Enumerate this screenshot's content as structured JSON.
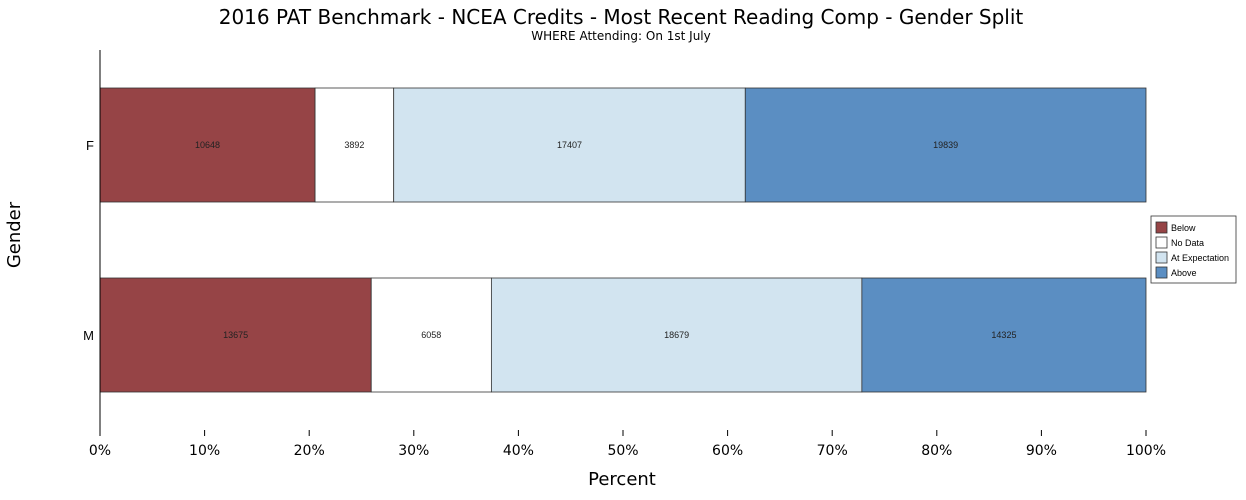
{
  "chart_data": {
    "type": "bar",
    "orientation": "horizontal",
    "stacked": "percent",
    "title": "2016 PAT Benchmark - NCEA Credits - Most Recent Reading Comp - Gender Split",
    "subtitle": "WHERE Attending: On 1st July",
    "xlabel": "Percent",
    "ylabel": "Gender",
    "xlim": [
      0,
      100
    ],
    "x_ticks": [
      "0%",
      "10%",
      "20%",
      "30%",
      "40%",
      "50%",
      "60%",
      "70%",
      "80%",
      "90%",
      "100%"
    ],
    "categories": [
      "F",
      "M"
    ],
    "series": [
      {
        "name": "Below",
        "color": "#964446",
        "values": [
          10648,
          13675
        ]
      },
      {
        "name": "No Data",
        "color": "#ffffff",
        "values": [
          3892,
          6058
        ]
      },
      {
        "name": "At Expectation",
        "color": "#d2e4f0",
        "values": [
          17407,
          18679
        ]
      },
      {
        "name": "Above",
        "color": "#5b8ec2",
        "values": [
          19839,
          14325
        ]
      }
    ],
    "legend_position": "right",
    "grid": false
  }
}
